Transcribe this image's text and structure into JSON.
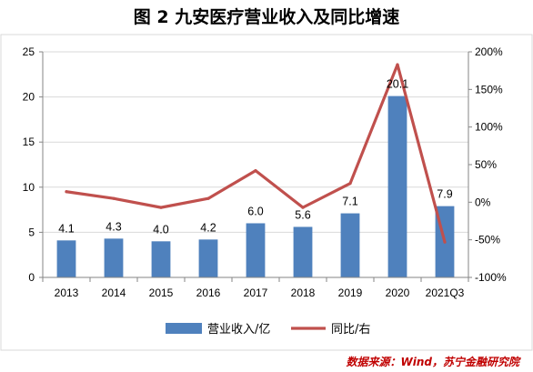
{
  "chart_data": {
    "type": "bar",
    "title": "图 2  九安医疗营业收入及同比增速",
    "categories": [
      "2013",
      "2014",
      "2015",
      "2016",
      "2017",
      "2018",
      "2019",
      "2020",
      "2021Q3"
    ],
    "series": [
      {
        "name": "营业收入/亿",
        "type": "bar",
        "axis": "left",
        "values": [
          4.1,
          4.3,
          4.0,
          4.2,
          6.0,
          5.6,
          7.1,
          20.1,
          7.9
        ],
        "data_labels": [
          "4.1",
          "4.3",
          "4.0",
          "4.2",
          "6.0",
          "5.6",
          "7.1",
          "20.1",
          "7.9"
        ],
        "color": "#4f81bd"
      },
      {
        "name": "同比/右",
        "type": "line",
        "axis": "right",
        "values": [
          0.14,
          0.05,
          -0.07,
          0.05,
          0.42,
          -0.07,
          0.25,
          1.83,
          -0.53
        ],
        "color": "#c0504d"
      }
    ],
    "y_left": {
      "min": 0,
      "max": 25,
      "ticks": [
        0,
        5,
        10,
        15,
        20,
        25
      ],
      "tick_labels": [
        "0",
        "5",
        "10",
        "15",
        "20",
        "25"
      ]
    },
    "y_right": {
      "min": -1.0,
      "max": 2.0,
      "ticks": [
        -1.0,
        -0.5,
        0.0,
        0.5,
        1.0,
        1.5,
        2.0
      ],
      "tick_labels": [
        "-100%",
        "-50%",
        "0%",
        "50%",
        "100%",
        "150%",
        "200%"
      ]
    },
    "grid": true,
    "legend": "bottom",
    "source": "数据来源：Wind，苏宁金融研究院"
  }
}
